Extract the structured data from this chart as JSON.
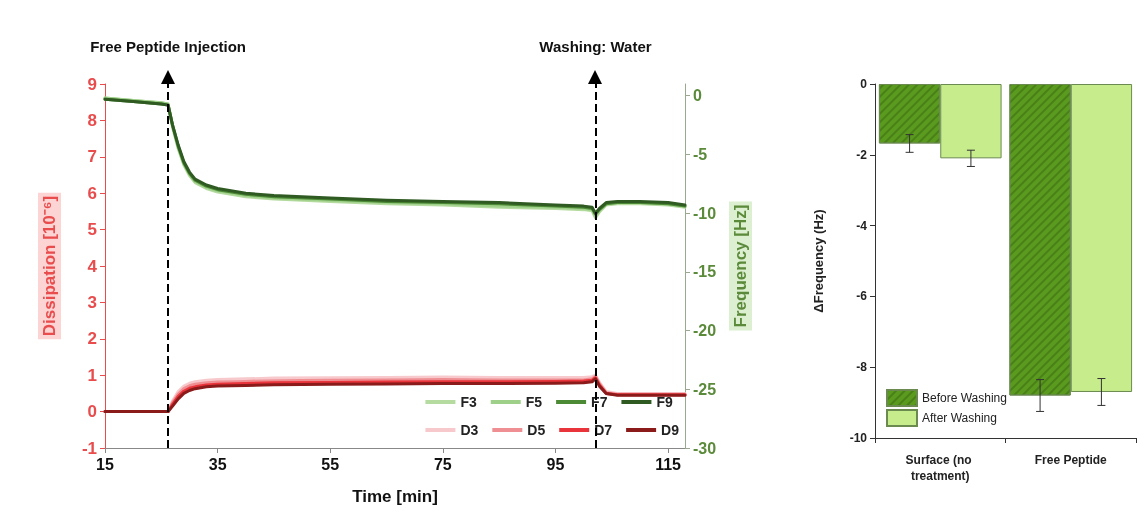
{
  "chart_data": [
    {
      "type": "line",
      "xlabel": "Time [min]",
      "ylabel": "Dissipation [10⁻⁶]",
      "y2label": "Frequency [Hz]",
      "x": [
        15,
        20,
        25,
        26.2,
        27,
        28,
        29,
        30,
        31,
        33,
        35,
        40,
        45,
        55,
        65,
        75,
        85,
        95,
        100,
        101.5,
        102.1,
        102.8,
        104,
        106,
        110,
        115,
        118
      ],
      "series": [
        {
          "name": "F3",
          "color": "#b5dba0",
          "axis": "y2",
          "values": [
            -0.2,
            -0.4,
            -0.6,
            -0.7,
            -2.7,
            -4.5,
            -5.9,
            -6.8,
            -7.4,
            -7.9,
            -8.2,
            -8.6,
            -8.8,
            -9.0,
            -9.2,
            -9.3,
            -9.5,
            -9.6,
            -9.7,
            -9.8,
            -10.4,
            -9.9,
            -9.3,
            -9.2,
            -9.2,
            -9.3,
            -9.5
          ]
        },
        {
          "name": "F5",
          "color": "#9fd08a",
          "axis": "y2",
          "values": [
            -0.2,
            -0.4,
            -0.6,
            -0.7,
            -2.6,
            -4.4,
            -5.8,
            -6.7,
            -7.3,
            -7.8,
            -8.1,
            -8.5,
            -8.7,
            -8.9,
            -9.1,
            -9.2,
            -9.4,
            -9.5,
            -9.6,
            -9.7,
            -10.3,
            -9.8,
            -9.2,
            -9.1,
            -9.1,
            -9.2,
            -9.4
          ]
        },
        {
          "name": "F7",
          "color": "#4c8a35",
          "axis": "y2",
          "values": [
            -0.3,
            -0.5,
            -0.7,
            -0.8,
            -2.5,
            -4.3,
            -5.7,
            -6.6,
            -7.2,
            -7.7,
            -8.0,
            -8.4,
            -8.6,
            -8.8,
            -9.0,
            -9.1,
            -9.2,
            -9.4,
            -9.5,
            -9.6,
            -10.1,
            -9.7,
            -9.2,
            -9.1,
            -9.1,
            -9.2,
            -9.4
          ]
        },
        {
          "name": "F9",
          "color": "#2f5a22",
          "axis": "y2",
          "values": [
            -0.3,
            -0.5,
            -0.7,
            -0.8,
            -2.5,
            -4.2,
            -5.6,
            -6.5,
            -7.1,
            -7.6,
            -7.9,
            -8.3,
            -8.5,
            -8.7,
            -8.9,
            -9.0,
            -9.1,
            -9.3,
            -9.4,
            -9.5,
            -10.0,
            -9.6,
            -9.1,
            -9.0,
            -9.0,
            -9.1,
            -9.3
          ]
        },
        {
          "name": "D3",
          "color": "#f7c9cc",
          "values": [
            0,
            0,
            0,
            0,
            0.3,
            0.55,
            0.7,
            0.78,
            0.82,
            0.86,
            0.88,
            0.9,
            0.92,
            0.93,
            0.94,
            0.95,
            0.94,
            0.94,
            0.94,
            0.96,
            1.0,
            0.8,
            0.55,
            0.5,
            0.5,
            0.5,
            0.5
          ]
        },
        {
          "name": "D5",
          "color": "#ef8f93",
          "values": [
            0,
            0,
            0,
            0,
            0.25,
            0.48,
            0.63,
            0.71,
            0.75,
            0.79,
            0.81,
            0.83,
            0.85,
            0.86,
            0.87,
            0.88,
            0.87,
            0.87,
            0.87,
            0.9,
            0.97,
            0.77,
            0.52,
            0.48,
            0.48,
            0.48,
            0.48
          ]
        },
        {
          "name": "D7",
          "color": "#e8343a",
          "values": [
            0,
            0,
            0,
            0,
            0.2,
            0.42,
            0.56,
            0.64,
            0.68,
            0.73,
            0.75,
            0.77,
            0.79,
            0.8,
            0.81,
            0.82,
            0.82,
            0.83,
            0.84,
            0.86,
            0.93,
            0.73,
            0.5,
            0.46,
            0.46,
            0.46,
            0.46
          ]
        },
        {
          "name": "D9",
          "color": "#8b1a1a",
          "values": [
            0,
            0,
            0,
            0,
            0.15,
            0.35,
            0.5,
            0.58,
            0.63,
            0.68,
            0.7,
            0.72,
            0.74,
            0.75,
            0.76,
            0.77,
            0.77,
            0.78,
            0.79,
            0.82,
            0.9,
            0.7,
            0.5,
            0.45,
            0.45,
            0.45,
            0.45
          ]
        }
      ],
      "xlim": [
        15,
        118
      ],
      "xticks": [
        15,
        35,
        55,
        75,
        95,
        115
      ],
      "ylim": [
        -1,
        9
      ],
      "yticks": [
        -1,
        0,
        1,
        2,
        3,
        4,
        5,
        6,
        7,
        8,
        9
      ],
      "y2lim": [
        -30,
        1
      ],
      "y2ticks": [
        -30,
        -25,
        -20,
        -15,
        -10,
        -5,
        0
      ],
      "ref_lines": [
        {
          "axis": "x",
          "value": 26.2,
          "label": "Free Peptide Injection",
          "color": "#000000",
          "line_style": "dashed"
        },
        {
          "axis": "x",
          "value": 102.1,
          "label": "Washing: Water",
          "color": "#000000",
          "line_style": "dashed"
        }
      ],
      "grid": false,
      "legend": "bottom right",
      "marker": "none",
      "line_style": "solid"
    },
    {
      "type": "bar",
      "ylabel": "ΔFrequency (Hz)",
      "categories": [
        "Surface (no treatment)",
        "Free Peptide"
      ],
      "series": [
        {
          "name": "Before Washing",
          "color": "#5a9a1e",
          "values": [
            -1.68,
            -8.8
          ],
          "errors": [
            0.25,
            0.45
          ]
        },
        {
          "name": "After Washing",
          "color": "#c6ec8c",
          "values": [
            -2.1,
            -8.7
          ],
          "errors": [
            0.23,
            0.38
          ]
        }
      ],
      "ylim": [
        -10,
        0
      ],
      "yticks": [
        -10,
        -8,
        -6,
        -4,
        -2,
        0
      ],
      "grid": false,
      "legend": "bottom left"
    }
  ]
}
